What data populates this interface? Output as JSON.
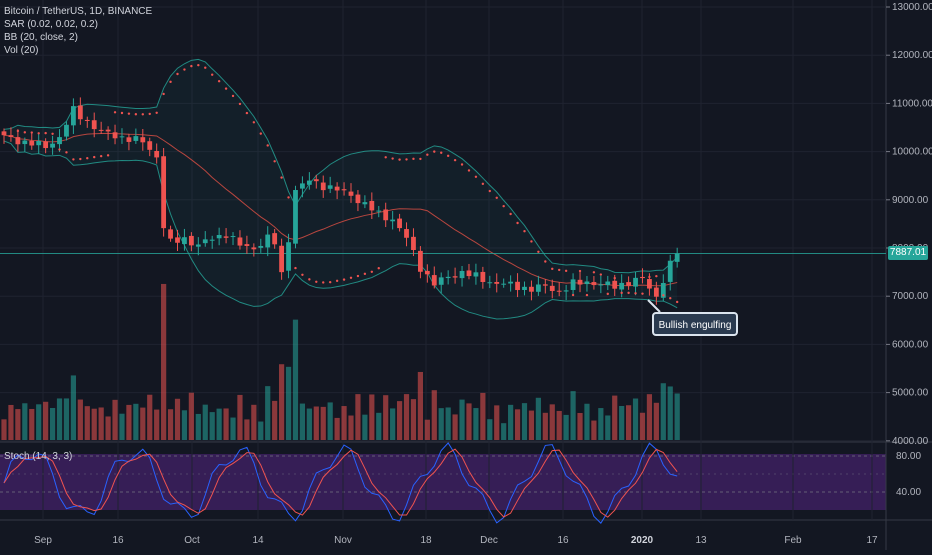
{
  "legend": {
    "symbol": "Bitcoin / TetherUS, 1D, BINANCE",
    "sar": "SAR (0.02, 0.02, 0.2)",
    "bb": "BB (20, close, 2)",
    "vol": "Vol (20)"
  },
  "stoch_label": "Stoch (14, 3, 3)",
  "current_price": "7887.01",
  "annotation": "Bullish engulfing",
  "colors": {
    "background": "#131722",
    "up": "#26a69a",
    "down": "#ef5350",
    "bb_band": "#26a69a",
    "bb_basis": "#b7463f",
    "sar": "#ef5350",
    "stoch_k": "#2962ff",
    "stoch_d": "#ef5350",
    "stoch_bg": "#3b1f5c"
  },
  "chart_data": {
    "type": "candlestick",
    "price_axis": [
      "13000.00",
      "12000.00",
      "11000.00",
      "10000.00",
      "9000.00",
      "8000.00",
      "7000.00",
      "6000.00",
      "5000.00",
      "4000.00"
    ],
    "price_levels": [
      13000,
      12000,
      11000,
      10000,
      9000,
      8000,
      7000,
      6000,
      5000,
      4000
    ],
    "stoch_axis": [
      "80.00",
      "40.00"
    ],
    "stoch_levels": [
      80,
      40
    ],
    "time_axis": [
      "Sep",
      "16",
      "Oct",
      "14",
      "Nov",
      "18",
      "Dec",
      "16",
      "2020",
      "13",
      "Feb",
      "17"
    ],
    "time_axis_bold": [
      false,
      false,
      false,
      false,
      false,
      false,
      false,
      false,
      true,
      false,
      false,
      false
    ],
    "close_keypoints": [
      [
        0,
        10300
      ],
      [
        6,
        10100
      ],
      [
        8,
        10300
      ],
      [
        10,
        10850
      ],
      [
        14,
        10400
      ],
      [
        17,
        10300
      ],
      [
        20,
        10200
      ],
      [
        22,
        9900
      ],
      [
        23,
        8450
      ],
      [
        24,
        8100
      ],
      [
        26,
        8200
      ],
      [
        28,
        8050
      ],
      [
        30,
        8200
      ],
      [
        32,
        8300
      ],
      [
        34,
        8050
      ],
      [
        36,
        8000
      ],
      [
        38,
        8200
      ],
      [
        39,
        8100
      ],
      [
        40,
        7450
      ],
      [
        41,
        8200
      ],
      [
        42,
        9200
      ],
      [
        44,
        9400
      ],
      [
        46,
        9300
      ],
      [
        48,
        9200
      ],
      [
        50,
        9100
      ],
      [
        52,
        8900
      ],
      [
        54,
        8700
      ],
      [
        56,
        8600
      ],
      [
        58,
        8200
      ],
      [
        60,
        7600
      ],
      [
        62,
        7250
      ],
      [
        64,
        7400
      ],
      [
        66,
        7500
      ],
      [
        68,
        7400
      ],
      [
        70,
        7300
      ],
      [
        72,
        7250
      ],
      [
        74,
        7200
      ],
      [
        76,
        7150
      ],
      [
        78,
        7200
      ],
      [
        80,
        7100
      ],
      [
        82,
        7250
      ],
      [
        84,
        7300
      ],
      [
        86,
        7250
      ],
      [
        88,
        7200
      ],
      [
        90,
        7300
      ],
      [
        92,
        7350
      ],
      [
        94,
        6990
      ],
      [
        95,
        7350
      ],
      [
        96,
        7650
      ],
      [
        97,
        7887
      ]
    ]
  }
}
